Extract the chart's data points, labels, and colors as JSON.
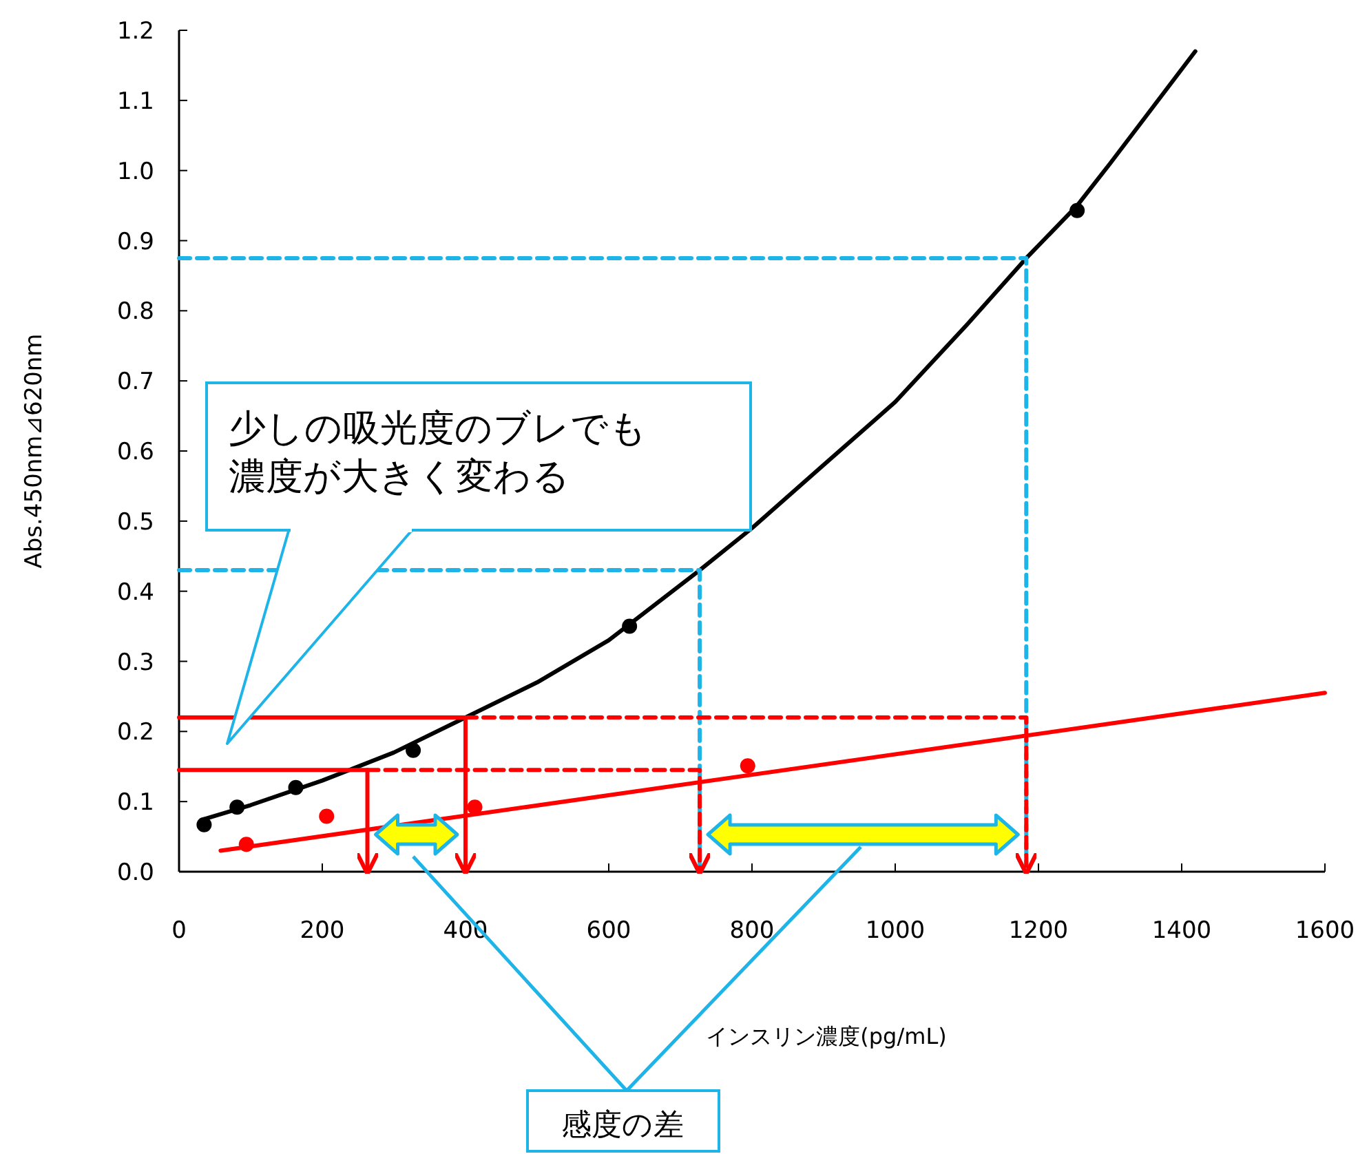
{
  "chart_data": {
    "type": "scatter",
    "xlabel": "インスリン濃度(pg/mL)",
    "ylabel": "Abs.450nm⊿620nm",
    "xlim": [
      0,
      1600
    ],
    "ylim": [
      0,
      1.2
    ],
    "xticks": [
      0,
      200,
      400,
      600,
      800,
      1000,
      1200,
      1400,
      1600
    ],
    "yticks": [
      {
        "value": 0,
        "label": "0.0"
      },
      {
        "value": 0.1,
        "label": "0.1"
      },
      {
        "value": 0.2,
        "label": "0.2"
      },
      {
        "value": 0.3,
        "label": "0.3"
      },
      {
        "value": 0.4,
        "label": "0.4"
      },
      {
        "value": 0.5,
        "label": "0.5"
      },
      {
        "value": 0.6,
        "label": "0.6"
      },
      {
        "value": 0.7,
        "label": "0.7"
      },
      {
        "value": 0.8,
        "label": "0.8"
      },
      {
        "value": 0.9,
        "label": "0.9"
      },
      {
        "value": 1.0,
        "label": "1.0"
      },
      {
        "value": 1.1,
        "label": "1.1"
      },
      {
        "value": 1.2,
        "label": "1.2"
      }
    ],
    "grid": false,
    "series": [
      {
        "type": "scatter",
        "marker": "circle",
        "color": "#000000",
        "x": [
          35,
          81,
          163,
          327,
          629,
          1254
        ],
        "values": [
          0.067,
          0.092,
          0.12,
          0.173,
          0.35,
          0.943
        ]
      },
      {
        "type": "line",
        "marker": "none",
        "line_style": "solid",
        "color": "#000000",
        "x": [
          35,
          100,
          200,
          300,
          400,
          500,
          600,
          727,
          800,
          900,
          1000,
          1100,
          1183,
          1254,
          1300,
          1419
        ],
        "values": [
          0.075,
          0.095,
          0.13,
          0.17,
          0.22,
          0.27,
          0.33,
          0.43,
          0.49,
          0.58,
          0.67,
          0.78,
          0.875,
          0.95,
          1.01,
          1.17
        ]
      },
      {
        "type": "scatter",
        "marker": "circle",
        "color": "#ff0000",
        "x": [
          94,
          206,
          413,
          794
        ],
        "values": [
          0.039,
          0.079,
          0.092,
          0.151
        ]
      },
      {
        "type": "line",
        "marker": "none",
        "line_style": "solid",
        "color": "#ff0000",
        "x": [
          58,
          1600
        ],
        "values": [
          0.03,
          0.255
        ]
      },
      {
        "type": "line",
        "marker": "none",
        "line_style": "dashed",
        "color": "#1fb4e8",
        "x": [
          0,
          1183,
          1183
        ],
        "values": [
          0.875,
          0.875,
          0
        ]
      },
      {
        "type": "line",
        "marker": "none",
        "line_style": "dashed",
        "color": "#1fb4e8",
        "x": [
          0,
          727,
          727
        ],
        "values": [
          0.43,
          0.43,
          0
        ]
      },
      {
        "type": "line",
        "marker": "none",
        "line_style": "solid",
        "color": "#ff0000",
        "x": [
          0,
          400,
          400
        ],
        "values": [
          0.22,
          0.22,
          0
        ]
      },
      {
        "type": "line",
        "marker": "none",
        "line_style": "dashed",
        "color": "#ff0000",
        "x": [
          400,
          1183,
          1183
        ],
        "values": [
          0.22,
          0.22,
          0
        ]
      },
      {
        "type": "line",
        "marker": "none",
        "line_style": "solid",
        "color": "#ff0000",
        "x": [
          0,
          263,
          263
        ],
        "values": [
          0.145,
          0.145,
          0
        ]
      },
      {
        "type": "line",
        "marker": "none",
        "line_style": "dashed",
        "color": "#ff0000",
        "x": [
          263,
          727,
          727
        ],
        "values": [
          0.145,
          0.145,
          0
        ]
      }
    ],
    "annotations": [
      "少しの吸光度のブレでも濃度が大きく変わる",
      "感度の差"
    ]
  }
}
